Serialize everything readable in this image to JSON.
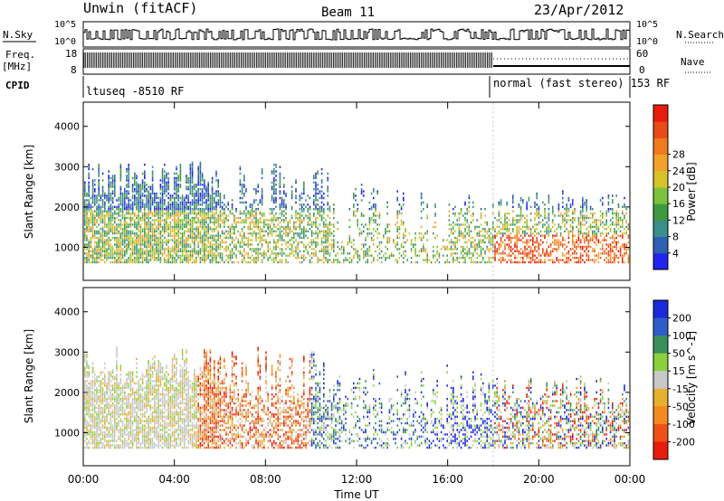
{
  "header": {
    "station": "Unwin (fitACF)",
    "beam": "Beam 11",
    "date": "23/Apr/2012"
  },
  "side_labels": {
    "nsky": "N.Sky",
    "nsearch": "N.Search",
    "freq_top": "Freq.",
    "freq_unit": "[MHz]",
    "nave": "Nave",
    "cpid": "CPID"
  },
  "cpid": {
    "left": "ltuseq -8510 RF",
    "right": "normal (fast stereo) 153 RF"
  },
  "strip_ticks": {
    "noise_left": [
      "10^5",
      "10^0"
    ],
    "noise_right": [
      "10^5",
      "10^0"
    ],
    "freq_left": [
      "18",
      "8"
    ],
    "nave_right": [
      "60",
      "0"
    ]
  },
  "chart_data": [
    {
      "type": "heatmap",
      "name": "power",
      "ylabel": "Slant Range [km]",
      "yticks": [
        1000,
        2000,
        3000,
        4000
      ],
      "ylim": [
        180,
        4600
      ],
      "colorbar_label": "Power [dB]",
      "colorbar_ticks": [
        4,
        8,
        12,
        16,
        20,
        24,
        28
      ],
      "colorbar_colors": [
        "#2222ee",
        "#2d5fb4",
        "#3a8f8a",
        "#3f9a3f",
        "#7cc23c",
        "#d8c22a",
        "#f2a22a",
        "#f07a20",
        "#e84a18",
        "#e81c0c"
      ]
    },
    {
      "type": "heatmap",
      "name": "velocity",
      "ylabel": "Slant Range [km]",
      "yticks": [
        1000,
        2000,
        3000,
        4000
      ],
      "ylim": [
        180,
        4600
      ],
      "colorbar_label": "Velocity [m s^-1]",
      "colorbar_ticks": [
        200,
        100,
        50,
        15,
        -15,
        -50,
        -100,
        -200
      ],
      "colorbar_colors": [
        "#1a2ad8",
        "#2f5cc8",
        "#3a8f5a",
        "#8ad03c",
        "#c8c8c8",
        "#e8b030",
        "#f28a20",
        "#f05018",
        "#e81c0c"
      ]
    }
  ],
  "time_axis": {
    "label": "Time UT",
    "ticks": [
      "00:00",
      "04:00",
      "08:00",
      "12:00",
      "16:00",
      "20:00",
      "00:00"
    ],
    "range_hours": [
      0,
      24
    ],
    "mode_change_hour": 18
  }
}
